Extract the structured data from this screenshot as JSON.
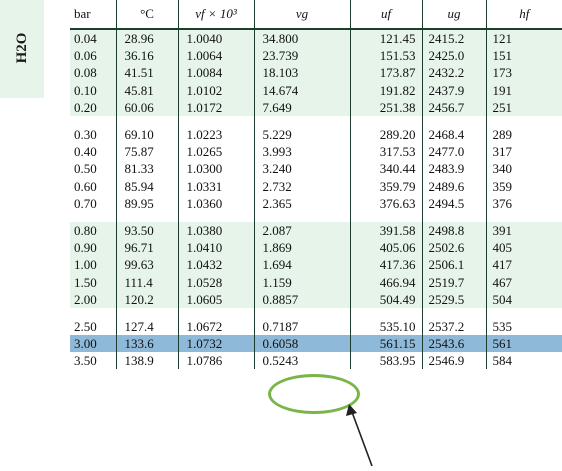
{
  "side_label": "H2O",
  "headers": [
    "bar",
    "°C",
    "vf × 10³",
    "vg",
    "uf",
    "ug",
    "hf"
  ],
  "groups": [
    {
      "shade": "green",
      "rows": [
        [
          "0.04",
          "28.96",
          "1.0040",
          "34.800",
          "121.45",
          "2415.2",
          "121"
        ],
        [
          "0.06",
          "36.16",
          "1.0064",
          "23.739",
          "151.53",
          "2425.0",
          "151"
        ],
        [
          "0.08",
          "41.51",
          "1.0084",
          "18.103",
          "173.87",
          "2432.2",
          "173"
        ],
        [
          "0.10",
          "45.81",
          "1.0102",
          "14.674",
          "191.82",
          "2437.9",
          "191"
        ],
        [
          "0.20",
          "60.06",
          "1.0172",
          "7.649",
          "251.38",
          "2456.7",
          "251"
        ]
      ]
    },
    {
      "shade": "white",
      "rows": [
        [
          "0.30",
          "69.10",
          "1.0223",
          "5.229",
          "289.20",
          "2468.4",
          "289"
        ],
        [
          "0.40",
          "75.87",
          "1.0265",
          "3.993",
          "317.53",
          "2477.0",
          "317"
        ],
        [
          "0.50",
          "81.33",
          "1.0300",
          "3.240",
          "340.44",
          "2483.9",
          "340"
        ],
        [
          "0.60",
          "85.94",
          "1.0331",
          "2.732",
          "359.79",
          "2489.6",
          "359"
        ],
        [
          "0.70",
          "89.95",
          "1.0360",
          "2.365",
          "376.63",
          "2494.5",
          "376"
        ]
      ]
    },
    {
      "shade": "green",
      "rows": [
        [
          "0.80",
          "93.50",
          "1.0380",
          "2.087",
          "391.58",
          "2498.8",
          "391"
        ],
        [
          "0.90",
          "96.71",
          "1.0410",
          "1.869",
          "405.06",
          "2502.6",
          "405"
        ],
        [
          "1.00",
          "99.63",
          "1.0432",
          "1.694",
          "417.36",
          "2506.1",
          "417"
        ],
        [
          "1.50",
          "111.4",
          "1.0528",
          "1.159",
          "466.94",
          "2519.7",
          "467"
        ],
        [
          "2.00",
          "120.2",
          "1.0605",
          "0.8857",
          "504.49",
          "2529.5",
          "504"
        ]
      ]
    },
    {
      "shade": "white",
      "rows": [
        [
          "2.50",
          "127.4",
          "1.0672",
          "0.7187",
          "535.10",
          "2537.2",
          "535"
        ],
        [
          "3.00",
          "133.6",
          "1.0732",
          "0.6058",
          "561.15",
          "2543.6",
          "561"
        ],
        [
          "3.50",
          "138.9",
          "1.0786",
          "0.5243",
          "583.95",
          "2546.9",
          "584"
        ]
      ]
    }
  ],
  "highlight_row": "3.00",
  "colors": {
    "green_band": "#e6f4ea",
    "highlight": "#8fb9d9",
    "oval": "#79b548",
    "rule": "#1b3c2e"
  }
}
